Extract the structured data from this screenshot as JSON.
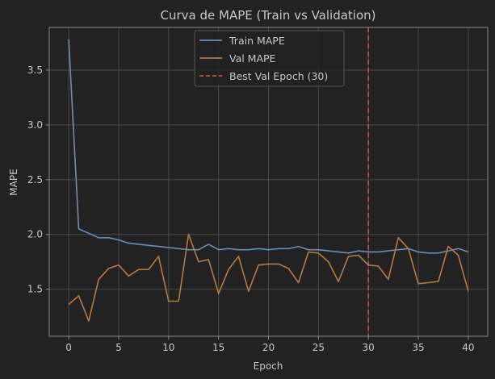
{
  "chart_data": {
    "type": "line",
    "title": "Curva de MAPE (Train vs Validation)",
    "xlabel": "Epoch",
    "ylabel": "MAPE",
    "xlim": [
      -1.95,
      41.95
    ],
    "ylim": [
      1.07,
      3.89
    ],
    "xticks": [
      0,
      5,
      10,
      15,
      20,
      25,
      30,
      35,
      40
    ],
    "yticks": [
      1.5,
      2.0,
      2.5,
      3.0,
      3.5
    ],
    "ytick_labels": [
      "1.5",
      "2.0",
      "2.5",
      "3.0",
      "3.5"
    ],
    "grid": true,
    "legend_position": "top-center",
    "x": [
      0,
      1,
      2,
      3,
      4,
      5,
      6,
      7,
      8,
      9,
      10,
      11,
      12,
      13,
      14,
      15,
      16,
      17,
      18,
      19,
      20,
      21,
      22,
      23,
      24,
      25,
      26,
      27,
      28,
      29,
      30,
      31,
      32,
      33,
      34,
      35,
      36,
      37,
      38,
      39,
      40
    ],
    "series": [
      {
        "name": "Train MAPE",
        "color": "#6b8fb3",
        "values": [
          3.78,
          2.05,
          2.01,
          1.97,
          1.97,
          1.95,
          1.92,
          1.91,
          1.9,
          1.89,
          1.88,
          1.87,
          1.86,
          1.86,
          1.91,
          1.86,
          1.87,
          1.86,
          1.86,
          1.87,
          1.86,
          1.87,
          1.87,
          1.89,
          1.86,
          1.86,
          1.85,
          1.84,
          1.83,
          1.85,
          1.84,
          1.84,
          1.85,
          1.86,
          1.87,
          1.84,
          1.83,
          1.83,
          1.85,
          1.87,
          1.84
        ]
      },
      {
        "name": "Val MAPE",
        "color": "#b47a45",
        "values": [
          1.36,
          1.44,
          1.21,
          1.59,
          1.69,
          1.72,
          1.62,
          1.68,
          1.68,
          1.8,
          1.39,
          1.39,
          2.0,
          1.75,
          1.77,
          1.46,
          1.68,
          1.8,
          1.48,
          1.72,
          1.73,
          1.73,
          1.69,
          1.56,
          1.84,
          1.83,
          1.75,
          1.57,
          1.8,
          1.81,
          1.72,
          1.71,
          1.59,
          1.97,
          1.87,
          1.55,
          1.56,
          1.57,
          1.89,
          1.81,
          1.48
        ]
      }
    ],
    "vline": {
      "x": 30,
      "name": "Best Val Epoch (30)",
      "color": "#c0504d"
    }
  }
}
